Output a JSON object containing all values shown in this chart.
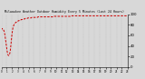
{
  "title": "Milwaukee Weather Outdoor Humidity Every 5 Minutes (Last 24 Hours)",
  "background_color": "#d8d8d8",
  "plot_bg_color": "#d8d8d8",
  "line_color": "#cc0000",
  "grid_color": "#aaaaaa",
  "ylim": [
    0,
    100
  ],
  "y_ticks": [
    0,
    20,
    40,
    60,
    80,
    100
  ],
  "humidity": [
    70,
    72,
    73,
    72,
    71,
    70,
    68,
    65,
    60,
    54,
    48,
    41,
    35,
    30,
    26,
    23,
    22,
    22,
    23,
    26,
    31,
    38,
    47,
    56,
    63,
    69,
    74,
    77,
    79,
    81,
    82,
    83,
    84,
    85,
    85,
    86,
    86,
    87,
    87,
    88,
    88,
    88,
    89,
    89,
    89,
    90,
    90,
    90,
    90,
    91,
    91,
    91,
    91,
    91,
    92,
    92,
    92,
    92,
    92,
    92,
    93,
    93,
    93,
    93,
    93,
    93,
    93,
    93,
    93,
    94,
    94,
    94,
    94,
    94,
    94,
    94,
    94,
    94,
    94,
    94,
    94,
    94,
    94,
    95,
    95,
    95,
    95,
    95,
    95,
    95,
    95,
    95,
    95,
    95,
    95,
    95,
    95,
    95,
    95,
    95,
    95,
    95,
    95,
    95,
    95,
    95,
    95,
    95,
    95,
    95,
    95,
    95,
    95,
    95,
    95,
    95,
    95,
    95,
    95,
    95,
    96,
    96,
    96,
    96,
    96,
    96,
    96,
    96,
    96,
    96,
    96,
    96,
    96,
    96,
    96,
    96,
    96,
    96,
    96,
    96,
    96,
    96,
    96,
    96,
    96,
    96,
    96,
    96,
    96,
    96,
    96,
    96,
    96,
    96,
    96,
    96,
    96,
    96,
    96,
    96,
    97,
    97,
    97,
    97,
    97,
    97,
    97,
    97,
    97,
    97,
    97,
    97,
    97,
    97,
    97,
    97,
    97,
    97,
    97,
    97,
    97,
    97,
    97,
    97,
    97,
    97,
    97,
    97,
    97,
    97,
    97,
    97,
    97,
    97,
    97,
    97,
    97,
    97,
    97,
    97,
    97,
    97,
    97,
    97,
    97,
    97,
    97,
    97,
    97,
    97,
    97,
    97,
    97,
    97,
    97,
    97,
    97,
    97,
    97,
    97,
    97,
    97,
    97,
    97,
    97,
    97,
    97,
    97,
    97,
    97,
    97,
    97,
    97,
    97,
    97,
    97,
    97,
    97,
    97,
    97,
    97,
    97,
    97,
    97,
    97,
    97,
    97,
    97,
    97,
    97,
    97,
    97,
    97,
    97,
    97,
    97,
    97,
    97,
    97,
    97,
    97,
    97,
    97,
    97,
    97,
    97,
    97,
    97,
    97,
    97,
    97,
    97,
    97,
    97,
    97,
    97,
    97,
    97,
    97,
    97,
    97,
    97,
    97,
    97,
    97,
    98,
    98,
    98
  ]
}
